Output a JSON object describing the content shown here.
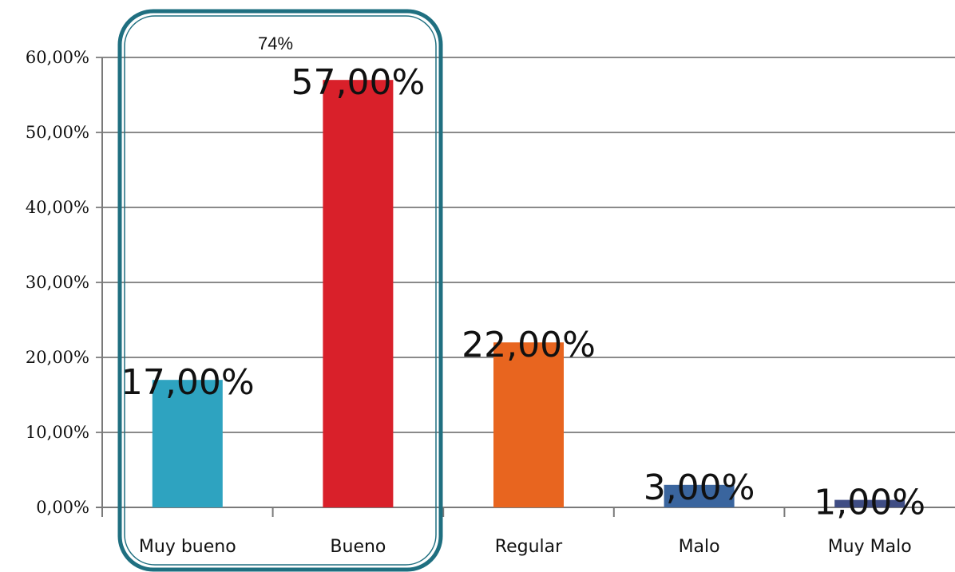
{
  "chart_data": {
    "type": "bar",
    "categories": [
      "Muy bueno",
      "Bueno",
      "Regular",
      "Malo",
      "Muy Malo"
    ],
    "values": [
      17,
      57,
      22,
      3,
      1
    ],
    "data_labels": [
      "17,00%",
      "57,00%",
      "22,00%",
      "3,00%",
      "1,00%"
    ],
    "colors": [
      "#2ea3c0",
      "#d9202a",
      "#e8651f",
      "#3a659e",
      "#3f4d84"
    ],
    "ylim": [
      0,
      60
    ],
    "yticks": [
      0,
      10,
      20,
      30,
      40,
      50,
      60
    ],
    "ytick_labels": [
      "0,00%",
      "10,00%",
      "20,00%",
      "30,00%",
      "40,00%",
      "50,00%",
      "60,00%"
    ],
    "grid": true,
    "annotation": {
      "text": "74%",
      "groups": [
        "Muy bueno",
        "Bueno"
      ],
      "color": "#1f6f80"
    }
  }
}
